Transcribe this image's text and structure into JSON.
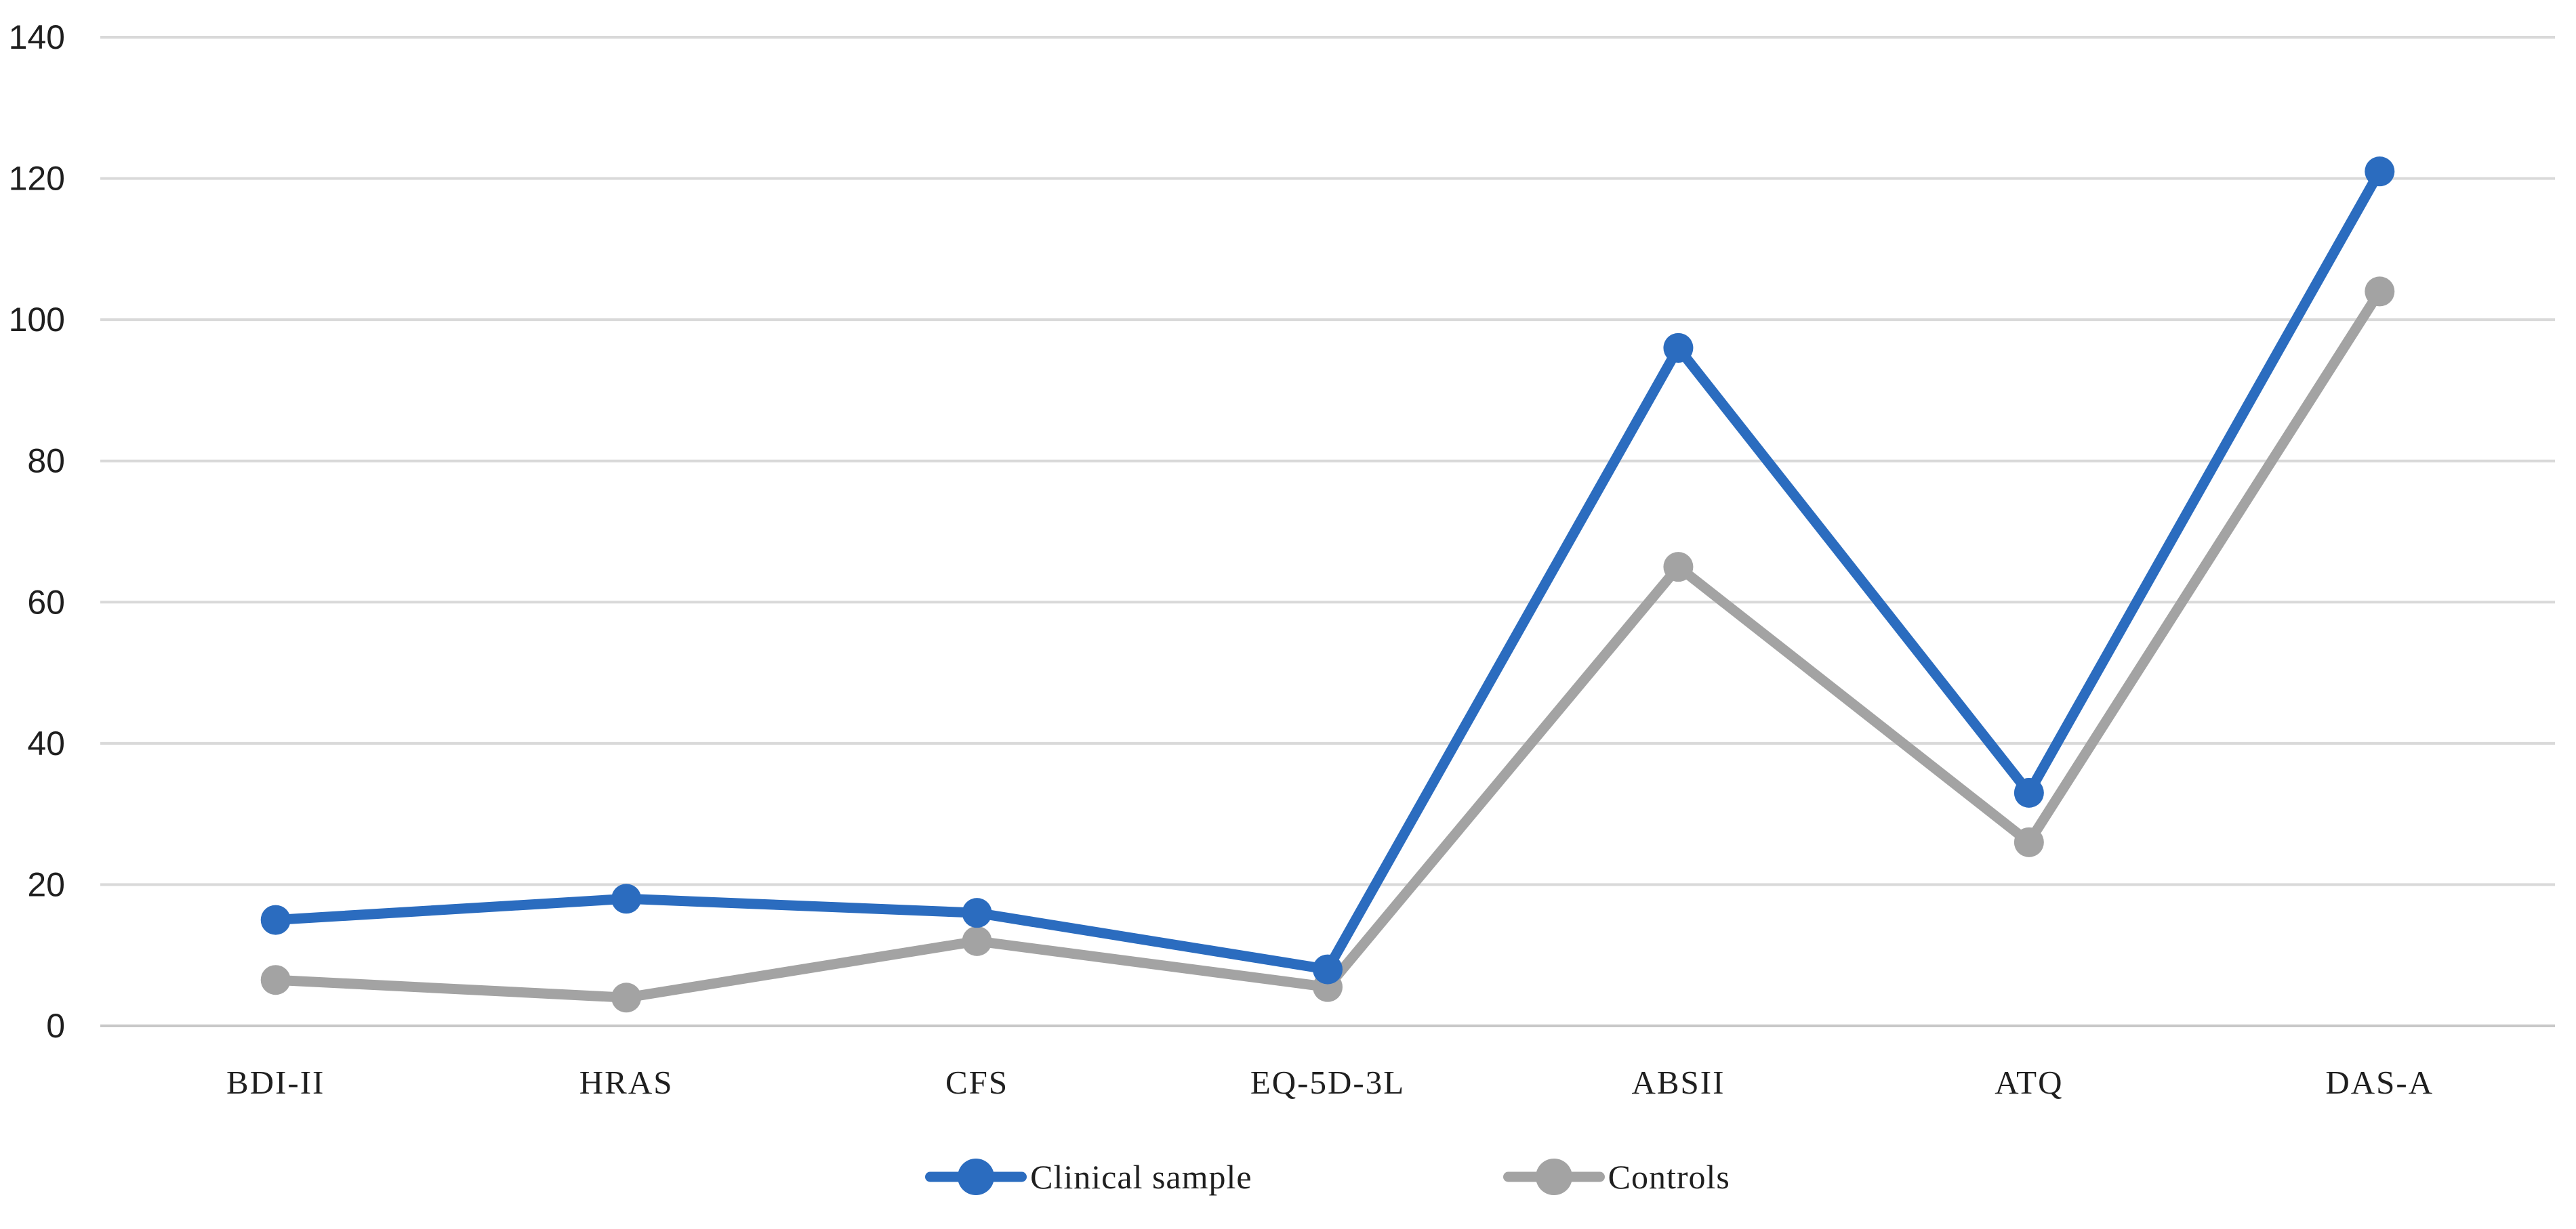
{
  "chart_data": {
    "type": "line",
    "title": "",
    "xlabel": "",
    "ylabel": "",
    "categories": [
      "BDI-II",
      "HRAS",
      "CFS",
      "EQ-5D-3L",
      "ABSII",
      "ATQ",
      "DAS-A"
    ],
    "series": [
      {
        "name": "Clinical sample",
        "color": "#2b6cbf",
        "values": [
          15,
          18,
          16,
          8,
          96,
          33,
          121
        ]
      },
      {
        "name": "Controls",
        "color": "#a3a3a3",
        "values": [
          6.5,
          4,
          12,
          5.5,
          65,
          26,
          104
        ]
      }
    ],
    "ylim": [
      0,
      140
    ],
    "yticks": [
      0,
      20,
      40,
      60,
      80,
      100,
      120,
      140
    ],
    "grid": true,
    "gridline_color": "#d9d9d9",
    "axis_color": "#c8c8c8",
    "marker": "circle",
    "legend_position": "bottom",
    "background_color": "#ffffff",
    "text_color": "#1f1f1f"
  }
}
